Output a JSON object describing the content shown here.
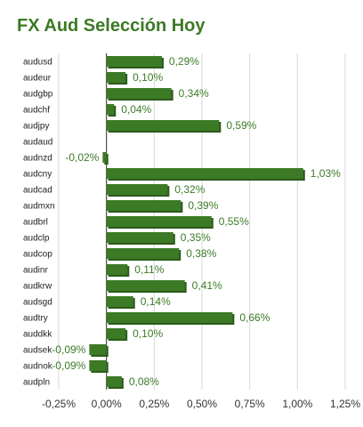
{
  "chart_data": {
    "type": "bar",
    "orientation": "horizontal",
    "title": "FX Aud Selección Hoy",
    "categories": [
      "audusd",
      "audeur",
      "audgbp",
      "audchf",
      "audjpy",
      "audaud",
      "audnzd",
      "audcny",
      "audcad",
      "audmxn",
      "audbrl",
      "audclp",
      "audcop",
      "audinr",
      "audkrw",
      "audsgd",
      "audtry",
      "auddkk",
      "audsek",
      "audnok",
      "audpln"
    ],
    "values": [
      0.29,
      0.1,
      0.34,
      0.04,
      0.59,
      0,
      -0.02,
      1.03,
      0.32,
      0.39,
      0.55,
      0.35,
      0.38,
      0.11,
      0.41,
      0.14,
      0.66,
      0.1,
      -0.09,
      -0.09,
      0.08
    ],
    "value_labels": [
      "0,29%",
      "0,10%",
      "0,34%",
      "0,04%",
      "0,59%",
      "",
      "-0,02%",
      "1,03%",
      "0,32%",
      "0,39%",
      "0,55%",
      "0,35%",
      "0,38%",
      "0,11%",
      "0,41%",
      "0,14%",
      "0,66%",
      "0,10%",
      "-0,09%",
      "-0,09%",
      "0,08%"
    ],
    "xlim": [
      -0.25,
      1.25
    ],
    "xticks": [
      -0.25,
      0,
      0.25,
      0.5,
      0.75,
      1.0,
      1.25
    ],
    "xtick_labels": [
      "-0,25%",
      "0,00%",
      "0,25%",
      "0,50%",
      "0,75%",
      "1,00%",
      "1,25%"
    ],
    "grid": true,
    "bar_color": "#3c7a26",
    "bar_shadow_color": "#2a5a1a",
    "title_color": "#3c7a26",
    "label_color": "#3c7a26"
  }
}
